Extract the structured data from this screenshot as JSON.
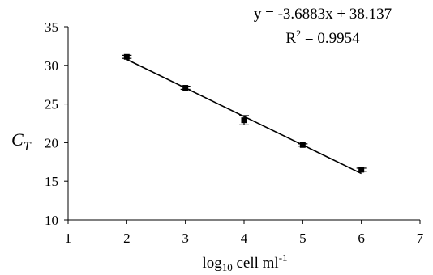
{
  "chart_data": {
    "type": "scatter",
    "xlabel_main": "log",
    "xlabel_sub": "10",
    "xlabel_rest": " cell ml",
    "xlabel_sup": "-1",
    "ylabel_main": "C",
    "ylabel_sub": "T",
    "xlim": [
      1,
      7
    ],
    "ylim": [
      10,
      35
    ],
    "xticks": [
      "1",
      "2",
      "3",
      "4",
      "5",
      "6",
      "7"
    ],
    "yticks": [
      "10",
      "15",
      "20",
      "25",
      "30",
      "35"
    ],
    "points": [
      {
        "x": 2,
        "y": 31.1,
        "err": 0.2
      },
      {
        "x": 3,
        "y": 27.1,
        "err": 0.2
      },
      {
        "x": 4,
        "y": 22.9,
        "err": 0.6
      },
      {
        "x": 5,
        "y": 19.7,
        "err": 0.15
      },
      {
        "x": 6,
        "y": 16.5,
        "err": 0.2
      }
    ],
    "trendline": {
      "slope": -3.6883,
      "intercept": 38.137,
      "x_range": [
        2,
        6
      ]
    },
    "equation_text": "y = -3.6883x + 38.137",
    "r2_prefix": "R",
    "r2_sup": "2",
    "r2_suffix": " = 0.9954",
    "grid": false,
    "legend": "none"
  }
}
